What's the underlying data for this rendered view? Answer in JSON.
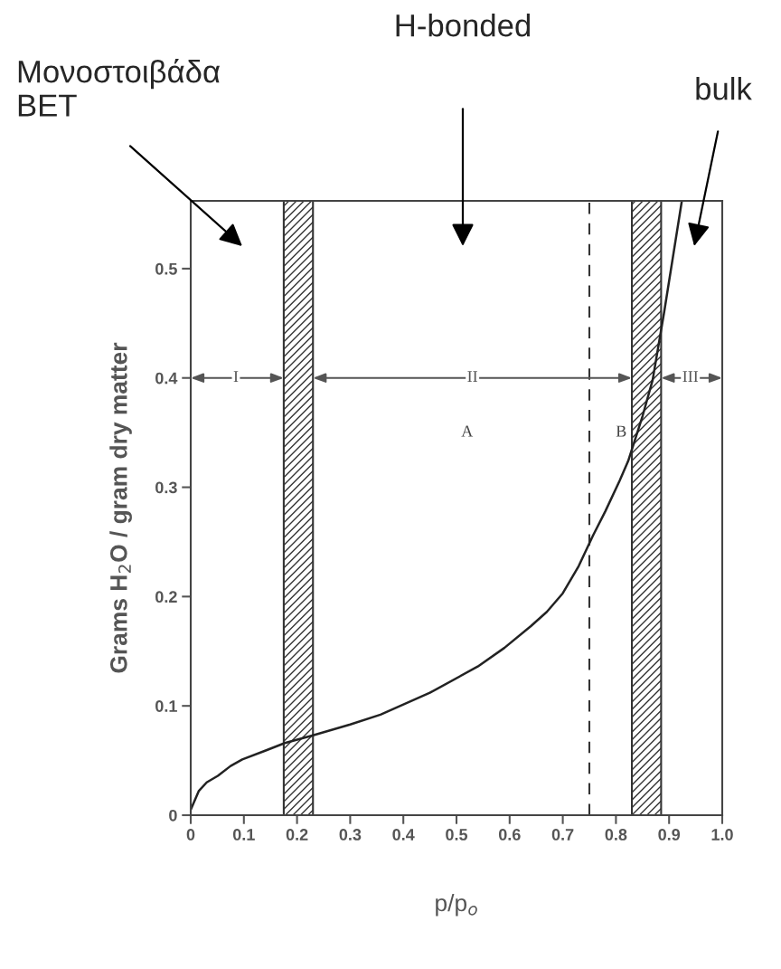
{
  "chart_data": {
    "type": "line",
    "xlabel": "p/p$_{o}$",
    "ylabel": "Grams H$_{2}$O / gram dry matter",
    "xlim": [
      0,
      1.0
    ],
    "ylim": [
      0,
      0.562
    ],
    "xticks": [
      0,
      0.1,
      0.2,
      0.3,
      0.4,
      0.5,
      0.6,
      0.7,
      0.8,
      0.9,
      {
        "value": 1.0,
        "label": "1.0"
      }
    ],
    "yticks": [
      0,
      0.1,
      0.2,
      0.3,
      0.4,
      0.5
    ],
    "grid": false,
    "legend": false,
    "marker": "none",
    "line_style": "solid",
    "series": [
      {
        "color": "#222222",
        "x": [
          0,
          0.015,
          0.03,
          0.051,
          0.075,
          0.097,
          0.14,
          0.177,
          0.23,
          0.3,
          0.357,
          0.45,
          0.54,
          0.59,
          0.64,
          0.67,
          0.7,
          0.73,
          0.757,
          0.78,
          0.807,
          0.823,
          0.85,
          0.869,
          0.891,
          0.924
        ],
        "values": [
          0.005,
          0.022,
          0.03,
          0.036,
          0.045,
          0.051,
          0.059,
          0.066,
          0.073,
          0.083,
          0.092,
          0.112,
          0.136,
          0.153,
          0.173,
          0.186,
          0.203,
          0.228,
          0.256,
          0.278,
          0.306,
          0.324,
          0.365,
          0.398,
          0.461,
          0.562
        ]
      }
    ],
    "bands": [
      {
        "axis": "x",
        "from": 0.175,
        "to": 0.23,
        "color": "#333333"
      },
      {
        "axis": "x",
        "from": 0.83,
        "to": 0.885,
        "color": "#333333"
      }
    ],
    "ref_lines": [
      {
        "axis": "x",
        "value": 0.75,
        "color": "#333333",
        "line_style": "dashed"
      }
    ],
    "annotations": [
      "Μονοστοιβάδα\nBET",
      "H-bonded",
      "bulk",
      {
        "text": "I",
        "x": 0.085,
        "y": 0.4
      },
      {
        "text": "II",
        "x": 0.53,
        "y": 0.4
      },
      {
        "text": "III",
        "x": 0.94,
        "y": 0.4
      },
      "A",
      "B"
    ]
  }
}
